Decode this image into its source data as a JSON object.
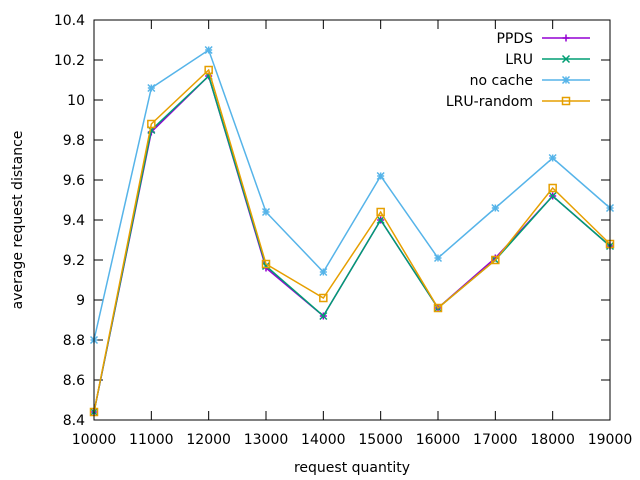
{
  "chart_data": {
    "type": "line",
    "xlabel": "request quantity",
    "ylabel": "average request distance",
    "x": [
      10000,
      11000,
      12000,
      13000,
      14000,
      15000,
      16000,
      17000,
      18000,
      19000
    ],
    "xlim": [
      10000,
      19000
    ],
    "ylim": [
      8.4,
      10.4
    ],
    "xticks": [
      10000,
      11000,
      12000,
      13000,
      14000,
      15000,
      16000,
      17000,
      18000,
      19000
    ],
    "yticks": [
      8.4,
      8.6,
      8.8,
      9.0,
      9.2,
      9.4,
      9.6,
      9.8,
      10.0,
      10.2,
      10.4
    ],
    "ytick_labels": [
      "8.4",
      "8.6",
      "8.8",
      "9",
      "9.2",
      "9.4",
      "9.6",
      "9.8",
      "10",
      "10.2",
      "10.4"
    ],
    "grid": false,
    "legend_position": "top-right",
    "series": [
      {
        "name": "PPDS",
        "color": "#9400d3",
        "marker": "plus",
        "values": [
          8.44,
          9.84,
          10.12,
          9.16,
          8.92,
          9.4,
          8.96,
          9.21,
          9.52,
          9.27
        ]
      },
      {
        "name": "LRU",
        "color": "#009e73",
        "marker": "cross",
        "values": [
          8.44,
          9.85,
          10.12,
          9.17,
          8.92,
          9.4,
          8.96,
          9.2,
          9.52,
          9.27
        ]
      },
      {
        "name": "no cache",
        "color": "#56b4e9",
        "marker": "star",
        "values": [
          8.8,
          10.06,
          10.25,
          9.44,
          9.14,
          9.62,
          9.21,
          9.46,
          9.71,
          9.46
        ]
      },
      {
        "name": "LRU-random",
        "color": "#e69f00",
        "marker": "square",
        "values": [
          8.44,
          9.88,
          10.15,
          9.18,
          9.01,
          9.44,
          8.96,
          9.2,
          9.56,
          9.28
        ]
      }
    ]
  }
}
